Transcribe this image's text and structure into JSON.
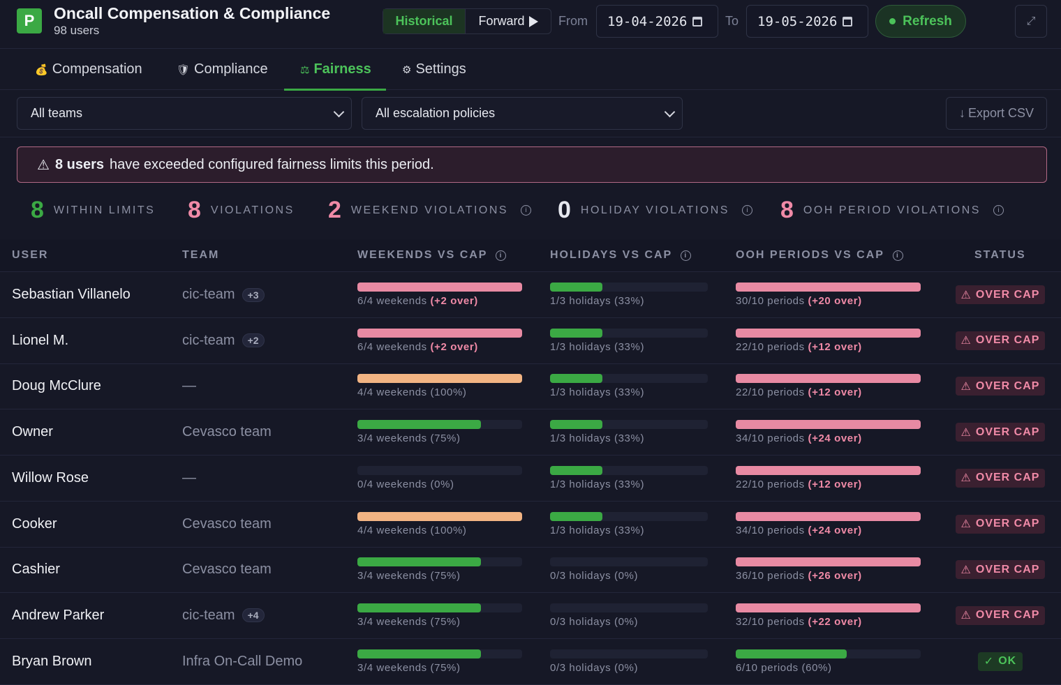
{
  "header": {
    "logo_letter": "P",
    "title": "Oncall Compensation & Compliance",
    "subtitle": "98 users",
    "mode_historical": "Historical",
    "mode_forward": "Forward",
    "from_label": "From",
    "from_date": "19-04-2026",
    "to_label": "To",
    "to_date": "19-05-2026",
    "refresh_label": "Refresh",
    "expand_icon": "⤢"
  },
  "tabs": [
    {
      "icon": "💰",
      "label": "Compensation"
    },
    {
      "icon": "🛡",
      "label": "Compliance"
    },
    {
      "icon": "⚖",
      "label": "Fairness"
    },
    {
      "icon": "⚙",
      "label": "Settings"
    }
  ],
  "filters": {
    "teams": "All teams",
    "policies": "All escalation policies",
    "export": "Export CSV",
    "export_icon": "↓"
  },
  "alert": {
    "icon": "⚠",
    "count": "8 users",
    "text": "have exceeded configured fairness limits this period."
  },
  "stats": [
    {
      "value": "8",
      "label": "WITHIN LIMITS",
      "color": "#3ba944"
    },
    {
      "value": "8",
      "label": "VIOLATIONS",
      "color": "#f08aa7"
    },
    {
      "value": "2",
      "label": "WEEKEND VIOLATIONS",
      "color": "#f08aa7"
    },
    {
      "value": "0",
      "label": "HOLIDAY VIOLATIONS",
      "color": "#e6e8ef"
    },
    {
      "value": "8",
      "label": "OOH PERIOD VIOLATIONS",
      "color": "#f08aa7"
    }
  ],
  "table": {
    "headers": {
      "user": "USER",
      "team": "TEAM",
      "weekends": "WEEKENDS VS CAP",
      "holidays": "HOLIDAYS VS CAP",
      "ooh": "OOH PERIODS VS CAP",
      "status": "STATUS"
    },
    "rows": [
      {
        "user": "Sebastian Villanelo",
        "team": "cic-team",
        "extra": "+3",
        "wk_text": "6/4 weekends",
        "wk_over": "(+2 over)",
        "wk_frac": 1.0,
        "wk_color": "#e88aa3",
        "hol_text": "1/3 holidays (33%)",
        "hol_frac": 0.33,
        "hol_color": "#3ba944",
        "ooh_text": "30/10 periods",
        "ooh_over": "(+20 over)",
        "ooh_frac": 1.0,
        "ooh_color": "#e88aa3",
        "status": "OVER CAP",
        "ok": false
      },
      {
        "user": "Lionel M.",
        "team": "cic-team",
        "extra": "+2",
        "wk_text": "6/4 weekends",
        "wk_over": "(+2 over)",
        "wk_frac": 1.0,
        "wk_color": "#e88aa3",
        "hol_text": "1/3 holidays (33%)",
        "hol_frac": 0.33,
        "hol_color": "#3ba944",
        "ooh_text": "22/10 periods",
        "ooh_over": "(+12 over)",
        "ooh_frac": 1.0,
        "ooh_color": "#e88aa3",
        "status": "OVER CAP",
        "ok": false
      },
      {
        "user": "Doug McClure",
        "team": "—",
        "extra": "",
        "wk_text": "4/4 weekends (100%)",
        "wk_over": "",
        "wk_frac": 1.0,
        "wk_color": "#f2b483",
        "hol_text": "1/3 holidays (33%)",
        "hol_frac": 0.33,
        "hol_color": "#3ba944",
        "ooh_text": "22/10 periods",
        "ooh_over": "(+12 over)",
        "ooh_frac": 1.0,
        "ooh_color": "#e88aa3",
        "status": "OVER CAP",
        "ok": false
      },
      {
        "user": "Owner",
        "team": "Cevasco team",
        "extra": "",
        "wk_text": "3/4 weekends (75%)",
        "wk_over": "",
        "wk_frac": 0.75,
        "wk_color": "#3ba944",
        "hol_text": "1/3 holidays (33%)",
        "hol_frac": 0.33,
        "hol_color": "#3ba944",
        "ooh_text": "34/10 periods",
        "ooh_over": "(+24 over)",
        "ooh_frac": 1.0,
        "ooh_color": "#e88aa3",
        "status": "OVER CAP",
        "ok": false
      },
      {
        "user": "Willow Rose",
        "team": "—",
        "extra": "",
        "wk_text": "0/4 weekends (0%)",
        "wk_over": "",
        "wk_frac": 0,
        "wk_color": "#3ba944",
        "hol_text": "1/3 holidays (33%)",
        "hol_frac": 0.33,
        "hol_color": "#3ba944",
        "ooh_text": "22/10 periods",
        "ooh_over": "(+12 over)",
        "ooh_frac": 1.0,
        "ooh_color": "#e88aa3",
        "status": "OVER CAP",
        "ok": false
      },
      {
        "user": "Cooker",
        "team": "Cevasco team",
        "extra": "",
        "wk_text": "4/4 weekends (100%)",
        "wk_over": "",
        "wk_frac": 1.0,
        "wk_color": "#f2b483",
        "hol_text": "1/3 holidays (33%)",
        "hol_frac": 0.33,
        "hol_color": "#3ba944",
        "ooh_text": "34/10 periods",
        "ooh_over": "(+24 over)",
        "ooh_frac": 1.0,
        "ooh_color": "#e88aa3",
        "status": "OVER CAP",
        "ok": false
      },
      {
        "user": "Cashier",
        "team": "Cevasco team",
        "extra": "",
        "wk_text": "3/4 weekends (75%)",
        "wk_over": "",
        "wk_frac": 0.75,
        "wk_color": "#3ba944",
        "hol_text": "0/3 holidays (0%)",
        "hol_frac": 0,
        "hol_color": "#3ba944",
        "ooh_text": "36/10 periods",
        "ooh_over": "(+26 over)",
        "ooh_frac": 1.0,
        "ooh_color": "#e88aa3",
        "status": "OVER CAP",
        "ok": false
      },
      {
        "user": "Andrew Parker",
        "team": "cic-team",
        "extra": "+4",
        "wk_text": "3/4 weekends (75%)",
        "wk_over": "",
        "wk_frac": 0.75,
        "wk_color": "#3ba944",
        "hol_text": "0/3 holidays (0%)",
        "hol_frac": 0,
        "hol_color": "#3ba944",
        "ooh_text": "32/10 periods",
        "ooh_over": "(+22 over)",
        "ooh_frac": 1.0,
        "ooh_color": "#e88aa3",
        "status": "OVER CAP",
        "ok": false
      },
      {
        "user": "Bryan Brown",
        "team": "Infra On-Call Demo",
        "extra": "",
        "wk_text": "3/4 weekends (75%)",
        "wk_over": "",
        "wk_frac": 0.75,
        "wk_color": "#3ba944",
        "hol_text": "0/3 holidays (0%)",
        "hol_frac": 0,
        "hol_color": "#3ba944",
        "ooh_text": "6/10 periods (60%)",
        "ooh_over": "",
        "ooh_frac": 0.6,
        "ooh_color": "#3ba944",
        "status": "OK",
        "ok": true
      }
    ]
  },
  "colors": {
    "accent": "#3ba944",
    "danger": "#f08aa7",
    "warning": "#f2b483",
    "background": "#161826"
  }
}
